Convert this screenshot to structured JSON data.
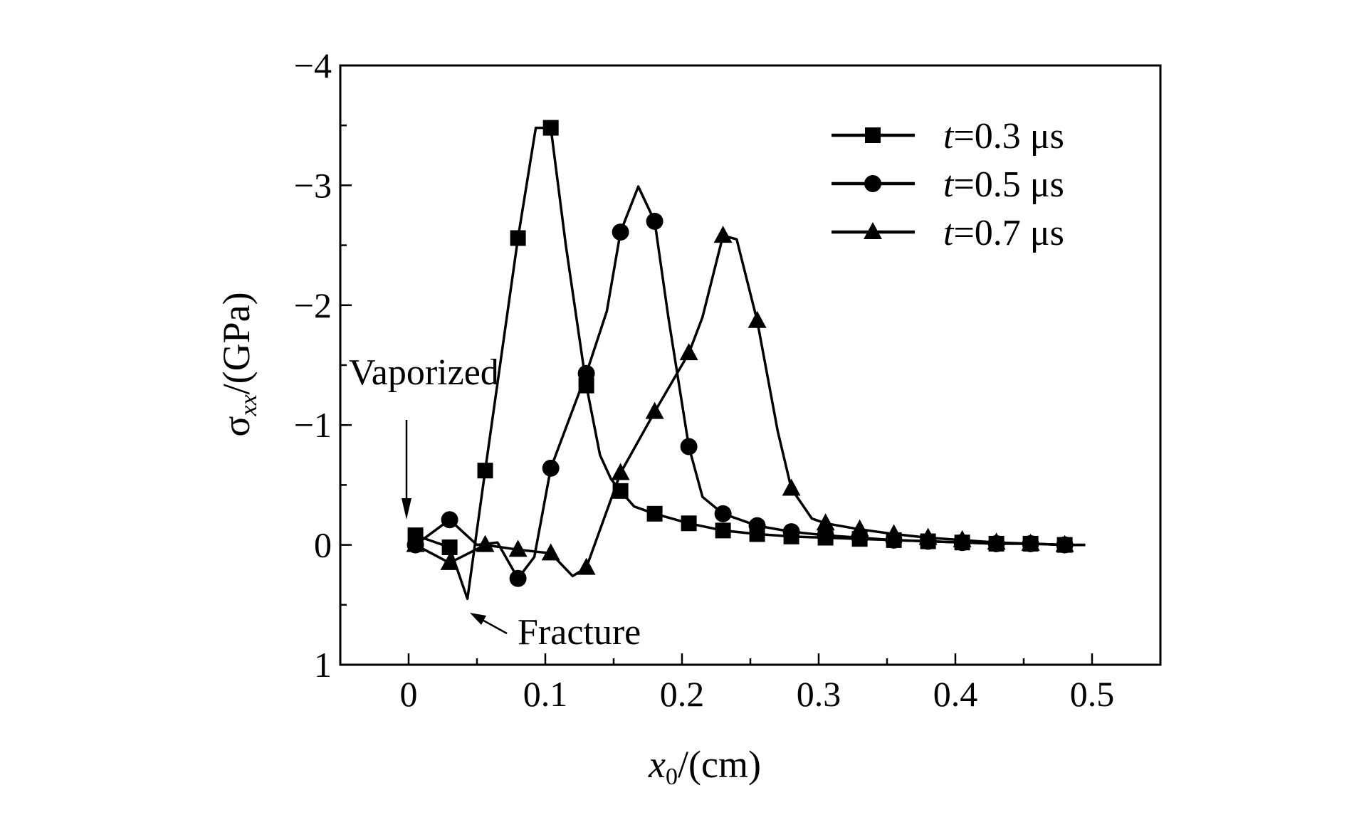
{
  "chart_data": {
    "type": "line",
    "title": "",
    "xlabel": "x0/(cm)",
    "xlabel_main": "x",
    "xlabel_sub": "0",
    "xlabel_unit": "/(cm)",
    "ylabel": "σxx/(GPa)",
    "ylabel_main": "σ",
    "ylabel_sub": "xx",
    "ylabel_unit": "/(GPa)",
    "xlim": [
      -0.05,
      0.55
    ],
    "ylim": [
      1,
      -4
    ],
    "y_inverted": true,
    "grid": false,
    "legend_position": "top-right",
    "x_ticks": [
      0,
      0.1,
      0.2,
      0.3,
      0.4,
      0.5
    ],
    "x_tick_labels": [
      "0",
      "0.1",
      "0.2",
      "0.3",
      "0.4",
      "0.5"
    ],
    "y_ticks": [
      -4,
      -3,
      -2,
      -1,
      0,
      1
    ],
    "y_tick_labels": [
      "−4",
      "−3",
      "−2",
      "−1",
      "0",
      "1"
    ],
    "series": [
      {
        "name": "t=0.3 μs",
        "legend_italic": "t",
        "legend_rest": "=0.3 μs",
        "marker": "square",
        "x": [
          0.005,
          0.03,
          0.056,
          0.08,
          0.104,
          0.13,
          0.155,
          0.18,
          0.205,
          0.23,
          0.255,
          0.28,
          0.305,
          0.33,
          0.355,
          0.38,
          0.405,
          0.43,
          0.455,
          0.48
        ],
        "y": [
          -0.08,
          0.02,
          -0.62,
          -2.56,
          -3.48,
          -1.33,
          -0.45,
          -0.26,
          -0.18,
          -0.12,
          -0.09,
          -0.07,
          -0.06,
          -0.05,
          -0.04,
          -0.03,
          -0.02,
          -0.01,
          -0.01,
          0
        ],
        "line_x": [
          0.005,
          0.03,
          0.043,
          0.056,
          0.08,
          0.093,
          0.104,
          0.115,
          0.13,
          0.14,
          0.148,
          0.155,
          0.165,
          0.18,
          0.205,
          0.23,
          0.255,
          0.28,
          0.305,
          0.33,
          0.355,
          0.38,
          0.405,
          0.43,
          0.455,
          0.48,
          0.495
        ],
        "line_y": [
          -0.08,
          0.02,
          0.45,
          -0.62,
          -2.56,
          -3.48,
          -3.48,
          -2.5,
          -1.33,
          -0.75,
          -0.55,
          -0.45,
          -0.32,
          -0.26,
          -0.18,
          -0.12,
          -0.09,
          -0.07,
          -0.06,
          -0.05,
          -0.04,
          -0.03,
          -0.02,
          -0.01,
          -0.01,
          0,
          0
        ]
      },
      {
        "name": "t=0.5 μs",
        "legend_italic": "t",
        "legend_rest": "=0.5 μs",
        "marker": "circle",
        "x": [
          0.005,
          0.03,
          0.08,
          0.104,
          0.13,
          0.155,
          0.18,
          0.205,
          0.23,
          0.255,
          0.28,
          0.305,
          0.33,
          0.355,
          0.38,
          0.405,
          0.43,
          0.455,
          0.48
        ],
        "y": [
          0,
          -0.21,
          0.28,
          -0.64,
          -1.43,
          -2.61,
          -2.7,
          -0.82,
          -0.26,
          -0.16,
          -0.11,
          -0.08,
          -0.06,
          -0.04,
          -0.03,
          -0.02,
          -0.01,
          -0.01,
          0
        ],
        "line_x": [
          0.005,
          0.03,
          0.05,
          0.065,
          0.08,
          0.092,
          0.104,
          0.13,
          0.145,
          0.155,
          0.168,
          0.18,
          0.19,
          0.205,
          0.215,
          0.23,
          0.255,
          0.28,
          0.305,
          0.33,
          0.355,
          0.38,
          0.405,
          0.43,
          0.455,
          0.48,
          0.495
        ],
        "line_y": [
          0,
          -0.21,
          0,
          -0.02,
          0.28,
          0.1,
          -0.64,
          -1.43,
          -1.95,
          -2.61,
          -2.99,
          -2.7,
          -1.9,
          -0.82,
          -0.4,
          -0.26,
          -0.16,
          -0.11,
          -0.08,
          -0.06,
          -0.04,
          -0.03,
          -0.02,
          -0.01,
          -0.01,
          0,
          0
        ]
      },
      {
        "name": "t=0.7 μs",
        "legend_italic": "t",
        "legend_rest": "=0.7 μs",
        "marker": "triangle",
        "x": [
          0.005,
          0.03,
          0.056,
          0.08,
          0.104,
          0.13,
          0.155,
          0.18,
          0.205,
          0.23,
          0.255,
          0.28,
          0.305,
          0.33,
          0.355,
          0.38,
          0.405,
          0.43,
          0.455,
          0.48
        ],
        "y": [
          0,
          0.15,
          0,
          0.04,
          0.07,
          0.19,
          -0.6,
          -1.11,
          -1.6,
          -2.58,
          -1.87,
          -0.47,
          -0.18,
          -0.13,
          -0.09,
          -0.06,
          -0.04,
          -0.02,
          -0.01,
          0
        ],
        "line_x": [
          0.005,
          0.03,
          0.056,
          0.08,
          0.104,
          0.12,
          0.13,
          0.155,
          0.18,
          0.205,
          0.215,
          0.23,
          0.24,
          0.255,
          0.27,
          0.28,
          0.295,
          0.305,
          0.33,
          0.355,
          0.38,
          0.405,
          0.43,
          0.455,
          0.48,
          0.495
        ],
        "line_y": [
          0,
          0.15,
          0,
          0.04,
          0.07,
          0.26,
          0.19,
          -0.6,
          -1.11,
          -1.6,
          -1.9,
          -2.58,
          -2.55,
          -1.87,
          -0.95,
          -0.47,
          -0.22,
          -0.18,
          -0.13,
          -0.09,
          -0.06,
          -0.04,
          -0.02,
          -0.01,
          0,
          0
        ]
      }
    ],
    "annotations": [
      {
        "text": "Vaporized",
        "points_to": [
          0,
          0.2
        ]
      },
      {
        "text": "Fracture",
        "points_to": [
          0.043,
          0.45
        ]
      }
    ]
  }
}
